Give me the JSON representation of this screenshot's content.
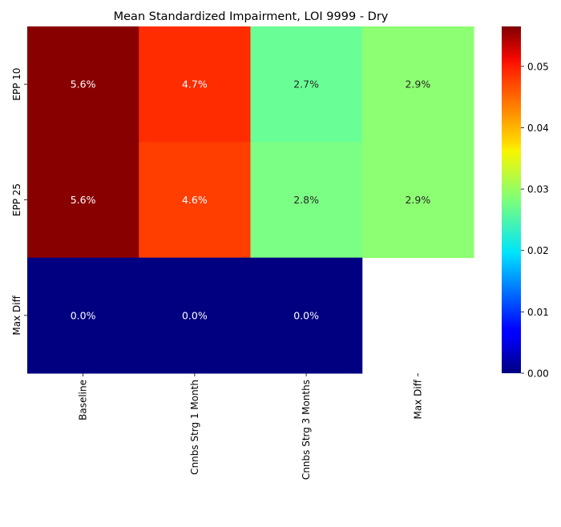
{
  "chart_data": {
    "type": "heatmap",
    "title": "Mean Standardized Impairment, LOI 9999 - Dry",
    "x_categories": [
      "Baseline",
      "Cnnbs Strg 1 Month",
      "Cnnbs Strg 3 Months",
      "Max Diff"
    ],
    "y_categories": [
      "EPP 10",
      "EPP 25",
      "Max Diff"
    ],
    "values": [
      [
        0.056,
        0.047,
        0.027,
        0.029
      ],
      [
        0.056,
        0.046,
        0.028,
        0.029
      ],
      [
        0.0,
        0.0,
        0.0,
        null
      ]
    ],
    "annotations": [
      [
        "5.6%",
        "4.7%",
        "2.7%",
        "2.9%"
      ],
      [
        "5.6%",
        "4.6%",
        "2.8%",
        "2.9%"
      ],
      [
        "0.0%",
        "0.0%",
        "0.0%",
        ""
      ]
    ],
    "colormap": "jet",
    "vmin": 0.0,
    "vmax": 0.0565,
    "colorbar_ticks": [
      "0.00",
      "0.01",
      "0.02",
      "0.03",
      "0.04",
      "0.05"
    ],
    "colorbar_tick_values": [
      0.0,
      0.01,
      0.02,
      0.03,
      0.04,
      0.05
    ]
  }
}
